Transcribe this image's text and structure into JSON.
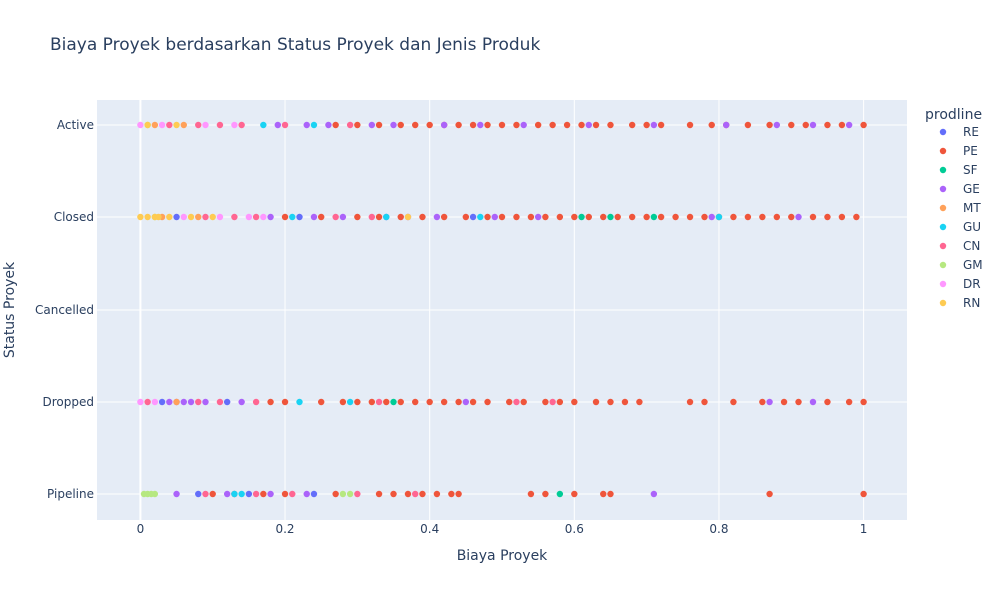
{
  "chart_data": {
    "type": "scatter",
    "title": "Biaya Proyek berdasarkan Status Proyek dan Jenis Produk",
    "xlabel": "Biaya Proyek",
    "ylabel": "Status Proyek",
    "xlim": [
      -0.06,
      1.06
    ],
    "x_ticks": [
      "0",
      "0.2",
      "0.4",
      "0.6",
      "0.8",
      "1"
    ],
    "x_tick_values": [
      0,
      0.2,
      0.4,
      0.6,
      0.8,
      1
    ],
    "categories": [
      "Active",
      "Closed",
      "Cancelled",
      "Dropped",
      "Pipeline"
    ],
    "grid": true,
    "legend_title": "prodline",
    "legend_position": "right",
    "series": [
      {
        "name": "RE",
        "color": "#636efa",
        "points": [
          {
            "x": 0.08,
            "y": "Pipeline"
          },
          {
            "x": 0.15,
            "y": "Pipeline"
          },
          {
            "x": 0.24,
            "y": "Pipeline"
          },
          {
            "x": 0.03,
            "y": "Dropped"
          },
          {
            "x": 0.12,
            "y": "Dropped"
          },
          {
            "x": 0.05,
            "y": "Closed"
          },
          {
            "x": 0.22,
            "y": "Closed"
          },
          {
            "x": 0.46,
            "y": "Closed"
          }
        ]
      },
      {
        "name": "PE",
        "color": "#ef553b",
        "points": [
          {
            "x": 0.36,
            "y": "Active"
          },
          {
            "x": 0.38,
            "y": "Active"
          },
          {
            "x": 0.4,
            "y": "Active"
          },
          {
            "x": 0.42,
            "y": "Active"
          },
          {
            "x": 0.44,
            "y": "Active"
          },
          {
            "x": 0.46,
            "y": "Active"
          },
          {
            "x": 0.48,
            "y": "Active"
          },
          {
            "x": 0.5,
            "y": "Active"
          },
          {
            "x": 0.52,
            "y": "Active"
          },
          {
            "x": 0.55,
            "y": "Active"
          },
          {
            "x": 0.57,
            "y": "Active"
          },
          {
            "x": 0.59,
            "y": "Active"
          },
          {
            "x": 0.61,
            "y": "Active"
          },
          {
            "x": 0.63,
            "y": "Active"
          },
          {
            "x": 0.65,
            "y": "Active"
          },
          {
            "x": 0.68,
            "y": "Active"
          },
          {
            "x": 0.7,
            "y": "Active"
          },
          {
            "x": 0.72,
            "y": "Active"
          },
          {
            "x": 0.76,
            "y": "Active"
          },
          {
            "x": 0.79,
            "y": "Active"
          },
          {
            "x": 0.81,
            "y": "Active"
          },
          {
            "x": 0.84,
            "y": "Active"
          },
          {
            "x": 0.87,
            "y": "Active"
          },
          {
            "x": 0.9,
            "y": "Active"
          },
          {
            "x": 0.92,
            "y": "Active"
          },
          {
            "x": 0.95,
            "y": "Active"
          },
          {
            "x": 0.97,
            "y": "Active"
          },
          {
            "x": 1.0,
            "y": "Active"
          },
          {
            "x": 0.33,
            "y": "Active"
          },
          {
            "x": 0.3,
            "y": "Active"
          },
          {
            "x": 0.27,
            "y": "Active"
          },
          {
            "x": 0.3,
            "y": "Closed"
          },
          {
            "x": 0.33,
            "y": "Closed"
          },
          {
            "x": 0.36,
            "y": "Closed"
          },
          {
            "x": 0.39,
            "y": "Closed"
          },
          {
            "x": 0.42,
            "y": "Closed"
          },
          {
            "x": 0.45,
            "y": "Closed"
          },
          {
            "x": 0.48,
            "y": "Closed"
          },
          {
            "x": 0.5,
            "y": "Closed"
          },
          {
            "x": 0.52,
            "y": "Closed"
          },
          {
            "x": 0.54,
            "y": "Closed"
          },
          {
            "x": 0.56,
            "y": "Closed"
          },
          {
            "x": 0.58,
            "y": "Closed"
          },
          {
            "x": 0.6,
            "y": "Closed"
          },
          {
            "x": 0.62,
            "y": "Closed"
          },
          {
            "x": 0.64,
            "y": "Closed"
          },
          {
            "x": 0.66,
            "y": "Closed"
          },
          {
            "x": 0.68,
            "y": "Closed"
          },
          {
            "x": 0.7,
            "y": "Closed"
          },
          {
            "x": 0.72,
            "y": "Closed"
          },
          {
            "x": 0.74,
            "y": "Closed"
          },
          {
            "x": 0.76,
            "y": "Closed"
          },
          {
            "x": 0.78,
            "y": "Closed"
          },
          {
            "x": 0.8,
            "y": "Closed"
          },
          {
            "x": 0.82,
            "y": "Closed"
          },
          {
            "x": 0.84,
            "y": "Closed"
          },
          {
            "x": 0.86,
            "y": "Closed"
          },
          {
            "x": 0.88,
            "y": "Closed"
          },
          {
            "x": 0.9,
            "y": "Closed"
          },
          {
            "x": 0.93,
            "y": "Closed"
          },
          {
            "x": 0.95,
            "y": "Closed"
          },
          {
            "x": 0.97,
            "y": "Closed"
          },
          {
            "x": 0.99,
            "y": "Closed"
          },
          {
            "x": 0.25,
            "y": "Closed"
          },
          {
            "x": 0.2,
            "y": "Closed"
          },
          {
            "x": 0.25,
            "y": "Dropped"
          },
          {
            "x": 0.28,
            "y": "Dropped"
          },
          {
            "x": 0.3,
            "y": "Dropped"
          },
          {
            "x": 0.32,
            "y": "Dropped"
          },
          {
            "x": 0.34,
            "y": "Dropped"
          },
          {
            "x": 0.36,
            "y": "Dropped"
          },
          {
            "x": 0.38,
            "y": "Dropped"
          },
          {
            "x": 0.4,
            "y": "Dropped"
          },
          {
            "x": 0.42,
            "y": "Dropped"
          },
          {
            "x": 0.44,
            "y": "Dropped"
          },
          {
            "x": 0.46,
            "y": "Dropped"
          },
          {
            "x": 0.48,
            "y": "Dropped"
          },
          {
            "x": 0.51,
            "y": "Dropped"
          },
          {
            "x": 0.53,
            "y": "Dropped"
          },
          {
            "x": 0.56,
            "y": "Dropped"
          },
          {
            "x": 0.58,
            "y": "Dropped"
          },
          {
            "x": 0.6,
            "y": "Dropped"
          },
          {
            "x": 0.63,
            "y": "Dropped"
          },
          {
            "x": 0.65,
            "y": "Dropped"
          },
          {
            "x": 0.67,
            "y": "Dropped"
          },
          {
            "x": 0.69,
            "y": "Dropped"
          },
          {
            "x": 0.76,
            "y": "Dropped"
          },
          {
            "x": 0.78,
            "y": "Dropped"
          },
          {
            "x": 0.82,
            "y": "Dropped"
          },
          {
            "x": 0.86,
            "y": "Dropped"
          },
          {
            "x": 0.89,
            "y": "Dropped"
          },
          {
            "x": 0.91,
            "y": "Dropped"
          },
          {
            "x": 0.95,
            "y": "Dropped"
          },
          {
            "x": 0.98,
            "y": "Dropped"
          },
          {
            "x": 1.0,
            "y": "Dropped"
          },
          {
            "x": 0.2,
            "y": "Dropped"
          },
          {
            "x": 0.18,
            "y": "Dropped"
          },
          {
            "x": 0.1,
            "y": "Pipeline"
          },
          {
            "x": 0.13,
            "y": "Pipeline"
          },
          {
            "x": 0.17,
            "y": "Pipeline"
          },
          {
            "x": 0.2,
            "y": "Pipeline"
          },
          {
            "x": 0.27,
            "y": "Pipeline"
          },
          {
            "x": 0.33,
            "y": "Pipeline"
          },
          {
            "x": 0.35,
            "y": "Pipeline"
          },
          {
            "x": 0.37,
            "y": "Pipeline"
          },
          {
            "x": 0.39,
            "y": "Pipeline"
          },
          {
            "x": 0.41,
            "y": "Pipeline"
          },
          {
            "x": 0.43,
            "y": "Pipeline"
          },
          {
            "x": 0.44,
            "y": "Pipeline"
          },
          {
            "x": 0.54,
            "y": "Pipeline"
          },
          {
            "x": 0.56,
            "y": "Pipeline"
          },
          {
            "x": 0.6,
            "y": "Pipeline"
          },
          {
            "x": 0.64,
            "y": "Pipeline"
          },
          {
            "x": 0.65,
            "y": "Pipeline"
          },
          {
            "x": 0.87,
            "y": "Pipeline"
          },
          {
            "x": 1.0,
            "y": "Pipeline"
          }
        ]
      },
      {
        "name": "SF",
        "color": "#00cc96",
        "points": [
          {
            "x": 0.61,
            "y": "Closed"
          },
          {
            "x": 0.65,
            "y": "Closed"
          },
          {
            "x": 0.71,
            "y": "Closed"
          },
          {
            "x": 0.58,
            "y": "Pipeline"
          },
          {
            "x": 0.35,
            "y": "Dropped"
          }
        ]
      },
      {
        "name": "GE",
        "color": "#ab63fa",
        "points": [
          {
            "x": 0.19,
            "y": "Active"
          },
          {
            "x": 0.23,
            "y": "Active"
          },
          {
            "x": 0.26,
            "y": "Active"
          },
          {
            "x": 0.32,
            "y": "Active"
          },
          {
            "x": 0.35,
            "y": "Active"
          },
          {
            "x": 0.42,
            "y": "Active"
          },
          {
            "x": 0.47,
            "y": "Active"
          },
          {
            "x": 0.53,
            "y": "Active"
          },
          {
            "x": 0.62,
            "y": "Active"
          },
          {
            "x": 0.71,
            "y": "Active"
          },
          {
            "x": 0.81,
            "y": "Active"
          },
          {
            "x": 0.88,
            "y": "Active"
          },
          {
            "x": 0.93,
            "y": "Active"
          },
          {
            "x": 0.98,
            "y": "Active"
          },
          {
            "x": 0.18,
            "y": "Closed"
          },
          {
            "x": 0.24,
            "y": "Closed"
          },
          {
            "x": 0.28,
            "y": "Closed"
          },
          {
            "x": 0.34,
            "y": "Closed"
          },
          {
            "x": 0.37,
            "y": "Closed"
          },
          {
            "x": 0.41,
            "y": "Closed"
          },
          {
            "x": 0.49,
            "y": "Closed"
          },
          {
            "x": 0.55,
            "y": "Closed"
          },
          {
            "x": 0.79,
            "y": "Closed"
          },
          {
            "x": 0.91,
            "y": "Closed"
          },
          {
            "x": 0.04,
            "y": "Dropped"
          },
          {
            "x": 0.05,
            "y": "Dropped"
          },
          {
            "x": 0.06,
            "y": "Dropped"
          },
          {
            "x": 0.07,
            "y": "Dropped"
          },
          {
            "x": 0.09,
            "y": "Dropped"
          },
          {
            "x": 0.14,
            "y": "Dropped"
          },
          {
            "x": 0.45,
            "y": "Dropped"
          },
          {
            "x": 0.87,
            "y": "Dropped"
          },
          {
            "x": 0.93,
            "y": "Dropped"
          },
          {
            "x": 0.05,
            "y": "Pipeline"
          },
          {
            "x": 0.12,
            "y": "Pipeline"
          },
          {
            "x": 0.18,
            "y": "Pipeline"
          },
          {
            "x": 0.23,
            "y": "Pipeline"
          },
          {
            "x": 0.71,
            "y": "Pipeline"
          }
        ]
      },
      {
        "name": "MT",
        "color": "#ffa15a",
        "points": [
          {
            "x": 0.02,
            "y": "Active"
          },
          {
            "x": 0.06,
            "y": "Active"
          },
          {
            "x": 0.03,
            "y": "Closed"
          },
          {
            "x": 0.08,
            "y": "Closed"
          },
          {
            "x": 0.05,
            "y": "Dropped"
          }
        ]
      },
      {
        "name": "GU",
        "color": "#19d3f3",
        "points": [
          {
            "x": 0.17,
            "y": "Active"
          },
          {
            "x": 0.24,
            "y": "Active"
          },
          {
            "x": 0.21,
            "y": "Closed"
          },
          {
            "x": 0.34,
            "y": "Closed"
          },
          {
            "x": 0.47,
            "y": "Closed"
          },
          {
            "x": 0.8,
            "y": "Closed"
          },
          {
            "x": 0.22,
            "y": "Dropped"
          },
          {
            "x": 0.29,
            "y": "Dropped"
          },
          {
            "x": 0.13,
            "y": "Pipeline"
          },
          {
            "x": 0.14,
            "y": "Pipeline"
          }
        ]
      },
      {
        "name": "CN",
        "color": "#ff6692",
        "points": [
          {
            "x": 0.04,
            "y": "Active"
          },
          {
            "x": 0.08,
            "y": "Active"
          },
          {
            "x": 0.11,
            "y": "Active"
          },
          {
            "x": 0.14,
            "y": "Active"
          },
          {
            "x": 0.2,
            "y": "Active"
          },
          {
            "x": 0.29,
            "y": "Active"
          },
          {
            "x": 0.09,
            "y": "Closed"
          },
          {
            "x": 0.13,
            "y": "Closed"
          },
          {
            "x": 0.16,
            "y": "Closed"
          },
          {
            "x": 0.27,
            "y": "Closed"
          },
          {
            "x": 0.32,
            "y": "Closed"
          },
          {
            "x": 0.01,
            "y": "Dropped"
          },
          {
            "x": 0.08,
            "y": "Dropped"
          },
          {
            "x": 0.11,
            "y": "Dropped"
          },
          {
            "x": 0.16,
            "y": "Dropped"
          },
          {
            "x": 0.33,
            "y": "Dropped"
          },
          {
            "x": 0.52,
            "y": "Dropped"
          },
          {
            "x": 0.57,
            "y": "Dropped"
          },
          {
            "x": 0.09,
            "y": "Pipeline"
          },
          {
            "x": 0.16,
            "y": "Pipeline"
          },
          {
            "x": 0.21,
            "y": "Pipeline"
          },
          {
            "x": 0.3,
            "y": "Pipeline"
          },
          {
            "x": 0.38,
            "y": "Pipeline"
          }
        ]
      },
      {
        "name": "GM",
        "color": "#b6e880",
        "points": [
          {
            "x": 0.005,
            "y": "Pipeline"
          },
          {
            "x": 0.01,
            "y": "Pipeline"
          },
          {
            "x": 0.015,
            "y": "Pipeline"
          },
          {
            "x": 0.02,
            "y": "Pipeline"
          },
          {
            "x": 0.28,
            "y": "Pipeline"
          },
          {
            "x": 0.29,
            "y": "Pipeline"
          },
          {
            "x": 0.01,
            "y": "Active"
          },
          {
            "x": 0.02,
            "y": "Closed"
          }
        ]
      },
      {
        "name": "DR",
        "color": "#ff97ff",
        "points": [
          {
            "x": 0.0,
            "y": "Active"
          },
          {
            "x": 0.03,
            "y": "Active"
          },
          {
            "x": 0.09,
            "y": "Active"
          },
          {
            "x": 0.13,
            "y": "Active"
          },
          {
            "x": 0.06,
            "y": "Closed"
          },
          {
            "x": 0.11,
            "y": "Closed"
          },
          {
            "x": 0.15,
            "y": "Closed"
          },
          {
            "x": 0.17,
            "y": "Closed"
          },
          {
            "x": 0.0,
            "y": "Dropped"
          },
          {
            "x": 0.02,
            "y": "Dropped"
          }
        ]
      },
      {
        "name": "RN",
        "color": "#fecb52",
        "points": [
          {
            "x": 0.0,
            "y": "Closed"
          },
          {
            "x": 0.01,
            "y": "Closed"
          },
          {
            "x": 0.02,
            "y": "Closed"
          },
          {
            "x": 0.025,
            "y": "Closed"
          },
          {
            "x": 0.04,
            "y": "Closed"
          },
          {
            "x": 0.07,
            "y": "Closed"
          },
          {
            "x": 0.1,
            "y": "Closed"
          },
          {
            "x": 0.37,
            "y": "Closed"
          },
          {
            "x": 0.05,
            "y": "Active"
          },
          {
            "x": 0.01,
            "y": "Active"
          }
        ]
      }
    ]
  },
  "colors": {
    "plot_bg": "#e5ecf6",
    "grid": "#ffffff",
    "text": "#2a3f5f"
  }
}
